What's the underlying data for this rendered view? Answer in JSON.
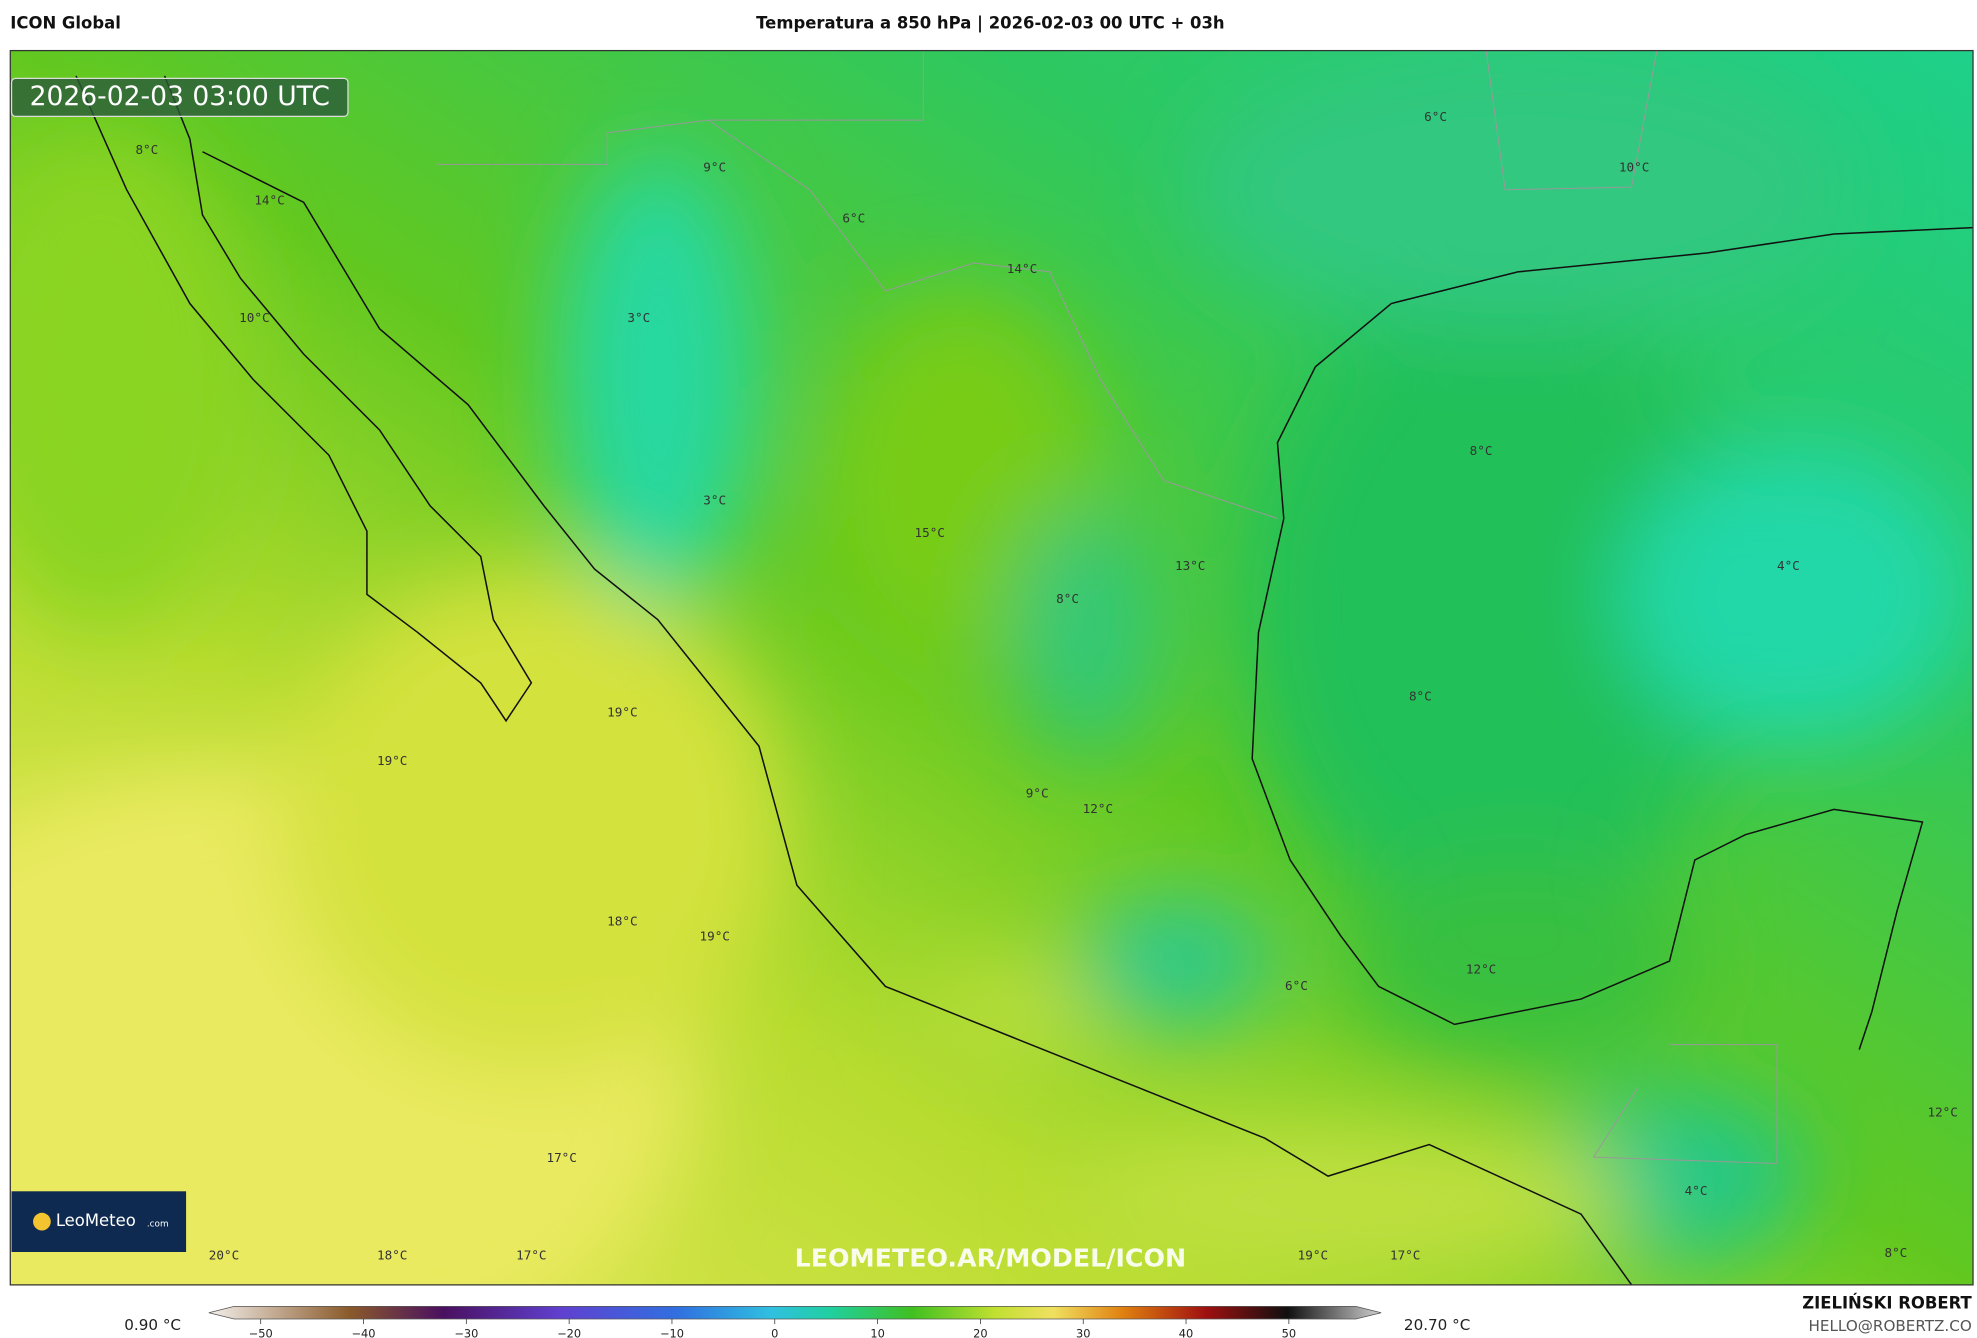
{
  "header": {
    "left": "ICON Global",
    "title": "Temperatura a 850 hPa | 2026-02-03 00 UTC + 03h"
  },
  "map": {
    "timestamp": "2026-02-03 03:00 UTC",
    "watermark": "LEOMETEO.AR/MODEL/ICON",
    "labels": [
      "8°C",
      "14°C",
      "10°C",
      "9°C",
      "6°C",
      "14°C",
      "3°C",
      "3°C",
      "15°C",
      "8°C",
      "13°C",
      "6°C",
      "10°C",
      "8°C",
      "4°C",
      "8°C",
      "19°C",
      "19°C",
      "9°C",
      "12°C",
      "18°C",
      "19°C",
      "6°C",
      "12°C",
      "12°C",
      "17°C",
      "4°C",
      "20°C",
      "18°C",
      "17°C",
      "19°C",
      "17°C",
      "8°C"
    ]
  },
  "logo": {
    "name": "LeoMeteo",
    "suffix": ".com"
  },
  "colorbar": {
    "min": "0.90 °C",
    "max": "20.70 °C",
    "ticks": [
      "−50",
      "−40",
      "−30",
      "−20",
      "−10",
      "0",
      "10",
      "20",
      "30",
      "40",
      "50"
    ]
  },
  "footer": {
    "author": "ZIELIŃSKI ROBERT",
    "email": "HELLO@ROBERTZ.CO"
  }
}
